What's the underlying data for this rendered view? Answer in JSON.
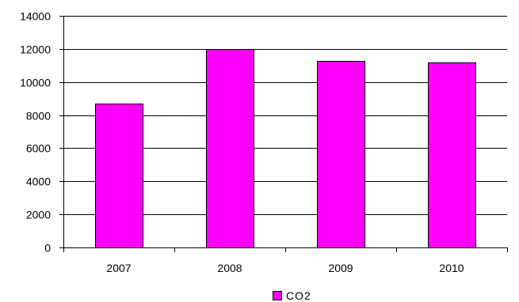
{
  "chart_data": {
    "type": "bar",
    "categories": [
      "2007",
      "2008",
      "2009",
      "2010"
    ],
    "series": [
      {
        "name": "CO2",
        "values": [
          8700,
          12000,
          11300,
          11200
        ],
        "color": "#ff00ff"
      }
    ],
    "ylim": [
      0,
      14000
    ],
    "yticks": [
      0,
      2000,
      4000,
      6000,
      8000,
      10000,
      12000,
      14000
    ],
    "grid": true,
    "legend_position": "bottom"
  }
}
